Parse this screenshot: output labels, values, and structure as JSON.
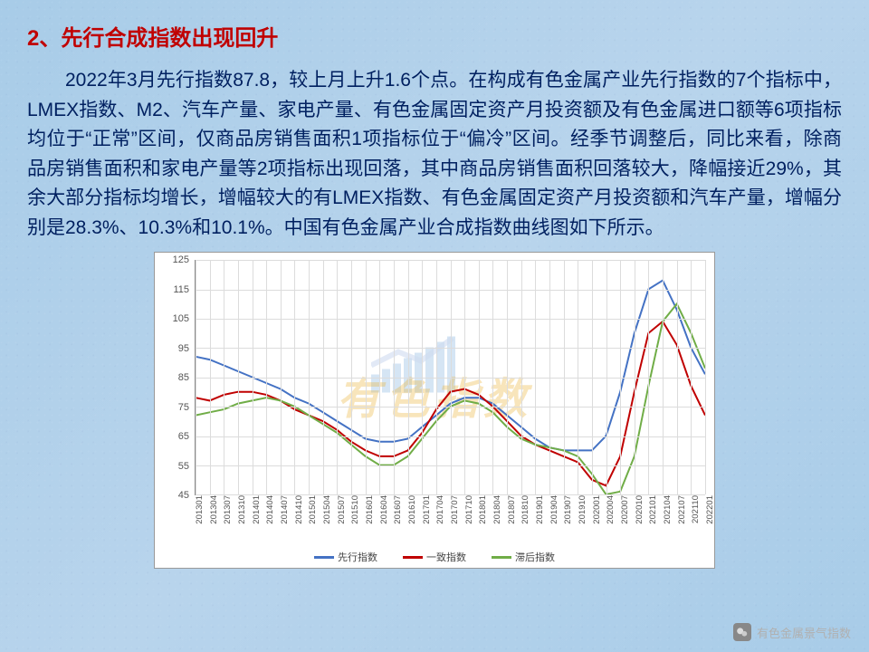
{
  "heading": "2、先行合成指数出现回升",
  "body": "2022年3月先行指数87.8，较上月上升1.6个点。在构成有色金属产业先行指数的7个指标中，LMEX指数、M2、汽车产量、家电产量、有色金属固定资产月投资额及有色金属进口额等6项指标均位于“正常”区间，仅商品房销售面积1项指标位于“偏冷”区间。经季节调整后，同比来看，除商品房销售面积和家电产量等2项指标出现回落，其中商品房销售面积回落较大，降幅接近29%，其余大部分指标均增长，增幅较大的有LMEX指数、有色金属固定资产月投资额和汽车产量，增幅分别是28.3%、10.3%和10.1%。中国有色金属产业合成指数曲线图如下所示。",
  "watermark_text": "有色指数",
  "footer_tag": "有色金属景气指数",
  "chart": {
    "type": "line",
    "ylim": [
      45,
      125
    ],
    "ytick_step": 10,
    "background_color": "#ffffff",
    "grid_color": "#dcdcdc",
    "axis_color": "#888888",
    "tick_font_size": 11,
    "line_width": 2,
    "x_labels": [
      "201301",
      "201304",
      "201307",
      "201310",
      "201401",
      "201404",
      "201407",
      "201410",
      "201501",
      "201504",
      "201507",
      "201510",
      "201601",
      "201604",
      "201607",
      "201610",
      "201701",
      "201704",
      "201707",
      "201710",
      "201801",
      "201804",
      "201807",
      "201810",
      "201901",
      "201904",
      "201907",
      "201910",
      "202001",
      "202004",
      "202007",
      "202010",
      "202101",
      "202104",
      "202107",
      "202110",
      "202201"
    ],
    "series": [
      {
        "name": "先行指数",
        "color": "#4472c4",
        "data": [
          92,
          91,
          89,
          87,
          85,
          83,
          81,
          78,
          76,
          73,
          70,
          67,
          64,
          63,
          63,
          64,
          68,
          72,
          76,
          78,
          78,
          76,
          72,
          68,
          64,
          61,
          60,
          60,
          60,
          65,
          80,
          100,
          115,
          118,
          108,
          95,
          86
        ]
      },
      {
        "name": "一致指数",
        "color": "#c00000",
        "data": [
          78,
          77,
          79,
          80,
          80,
          79,
          77,
          74,
          72,
          70,
          67,
          63,
          60,
          58,
          58,
          60,
          66,
          74,
          80,
          81,
          79,
          75,
          70,
          65,
          62,
          60,
          58,
          56,
          50,
          48,
          58,
          80,
          100,
          104,
          96,
          82,
          72
        ]
      },
      {
        "name": "滞后指数",
        "color": "#70ad47",
        "data": [
          72,
          73,
          74,
          76,
          77,
          78,
          77,
          75,
          72,
          69,
          66,
          62,
          58,
          55,
          55,
          58,
          64,
          70,
          75,
          77,
          76,
          73,
          68,
          64,
          62,
          61,
          60,
          58,
          52,
          45,
          46,
          58,
          82,
          104,
          110,
          100,
          88
        ]
      }
    ],
    "legend": {
      "items": [
        "先行指数",
        "一致指数",
        "滞后指数"
      ],
      "position": "bottom"
    }
  },
  "colors": {
    "heading": "#c00000",
    "body_text": "#002060",
    "page_bg_a": "#a8cce8",
    "page_bg_b": "#b8d4ec",
    "footer_text": "#b0b0b0"
  }
}
